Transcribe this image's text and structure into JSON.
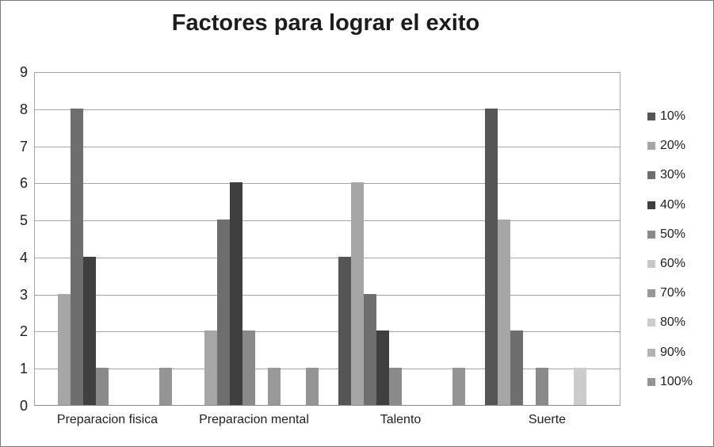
{
  "chart_data": {
    "type": "bar",
    "title": "Factores para lograr el exito",
    "categories": [
      "Preparacion fisica",
      "Preparacion mental",
      "Talento",
      "Suerte"
    ],
    "series": [
      {
        "name": "10%",
        "color": "#555555",
        "values": [
          0,
          0,
          4,
          8
        ]
      },
      {
        "name": "20%",
        "color": "#a6a6a6",
        "values": [
          3,
          2,
          6,
          5
        ]
      },
      {
        "name": "30%",
        "color": "#6e6e6e",
        "values": [
          8,
          5,
          3,
          2
        ]
      },
      {
        "name": "40%",
        "color": "#3f3f3f",
        "values": [
          4,
          6,
          2,
          0
        ]
      },
      {
        "name": "50%",
        "color": "#8a8a8a",
        "values": [
          1,
          2,
          1,
          1
        ]
      },
      {
        "name": "60%",
        "color": "#c7c7c7",
        "values": [
          0,
          0,
          0,
          0
        ]
      },
      {
        "name": "70%",
        "color": "#999999",
        "values": [
          0,
          1,
          0,
          0
        ]
      },
      {
        "name": "80%",
        "color": "#cccccc",
        "values": [
          0,
          0,
          0,
          1
        ]
      },
      {
        "name": "90%",
        "color": "#b2b2b2",
        "values": [
          0,
          0,
          0,
          0
        ]
      },
      {
        "name": "100%",
        "color": "#949494",
        "values": [
          1,
          1,
          1,
          0
        ]
      }
    ],
    "xlabel": "",
    "ylabel": "",
    "ylim": [
      0,
      9
    ],
    "yticks": [
      0,
      1,
      2,
      3,
      4,
      5,
      6,
      7,
      8,
      9
    ],
    "grid": true,
    "legend_position": "right"
  },
  "style": {
    "gridline_color": "#a6a6a6",
    "axis_color": "#8c8c8c",
    "text_color": "#202020",
    "background": "#ffffff"
  }
}
